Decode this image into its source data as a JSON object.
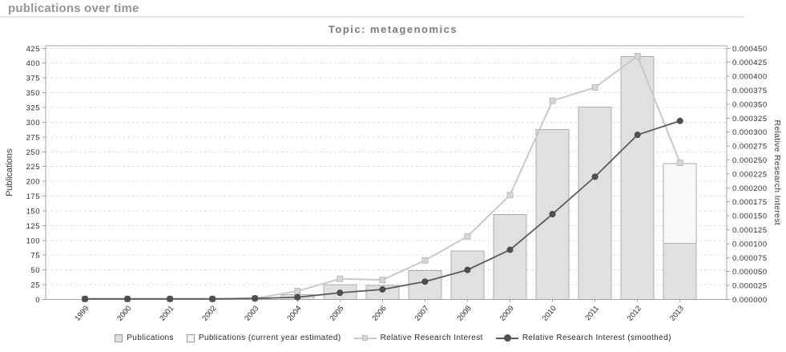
{
  "page": {
    "header": "publications over time"
  },
  "chart": {
    "title": "Topic: metagenomics",
    "y_left_label": "Publications",
    "y_right_label": "Relative Research Interest",
    "legend": {
      "publications": "Publications",
      "publications_estimated": "Publications (current year estimated)",
      "rri": "Relative Research Interest",
      "rri_smoothed": "Relative Research Interest (smoothed)"
    },
    "colors": {
      "bar": "#e0e0e0",
      "bar_border": "#aeaeae",
      "bar_estimated": "#f8f8f8",
      "rri_line": "#c9c9c9",
      "rri_marker": "#d6d6d6",
      "smoothed_line": "#5c5c5c",
      "smoothed_marker": "#4f4f4f",
      "grid": "#dcdcdc",
      "frame": "#a3a3a3",
      "tick_text": "#2b2b2b",
      "title_text": "#7c7c7c"
    }
  },
  "chart_data": {
    "type": "bar",
    "categories": [
      "1999",
      "2000",
      "2001",
      "2002",
      "2003",
      "2004",
      "2005",
      "2006",
      "2007",
      "2008",
      "2009",
      "2010",
      "2011",
      "2012",
      "2013"
    ],
    "series": [
      {
        "name": "Publications",
        "type": "bar",
        "axis": "left",
        "values": [
          0,
          0,
          0,
          0,
          1,
          8,
          25,
          24,
          49,
          82,
          144,
          288,
          326,
          411,
          95
        ]
      },
      {
        "name": "Publications (current year estimated)",
        "type": "bar",
        "axis": "left",
        "values": [
          null,
          null,
          null,
          null,
          null,
          null,
          null,
          null,
          null,
          null,
          null,
          null,
          null,
          null,
          230
        ]
      },
      {
        "name": "Relative Research Interest",
        "type": "line",
        "axis": "right",
        "values": [
          1e-06,
          1e-06,
          1e-06,
          1e-06,
          2e-06,
          1.5e-05,
          3.7e-05,
          3.5e-05,
          7e-05,
          0.000113,
          0.000187,
          0.000356,
          0.00038,
          0.000436,
          0.000245
        ]
      },
      {
        "name": "Relative Research Interest (smoothed)",
        "type": "line",
        "axis": "right",
        "values": [
          1e-06,
          1e-06,
          1e-06,
          1e-06,
          2e-06,
          4e-06,
          1.2e-05,
          1.8e-05,
          3.2e-05,
          5.3e-05,
          8.9e-05,
          0.000153,
          0.00022,
          0.000295,
          0.00032
        ]
      }
    ],
    "title": "Topic: metagenomics",
    "xlabel": "",
    "ylabel_left": "Publications",
    "ylabel_right": "Relative Research Interest",
    "y_left": {
      "min": 0,
      "max": 425,
      "step": 25
    },
    "y_right": {
      "min": 0,
      "max": 0.00045,
      "step": 2.5e-05,
      "decimals": 6
    },
    "grid": true,
    "legend_position": "bottom"
  }
}
